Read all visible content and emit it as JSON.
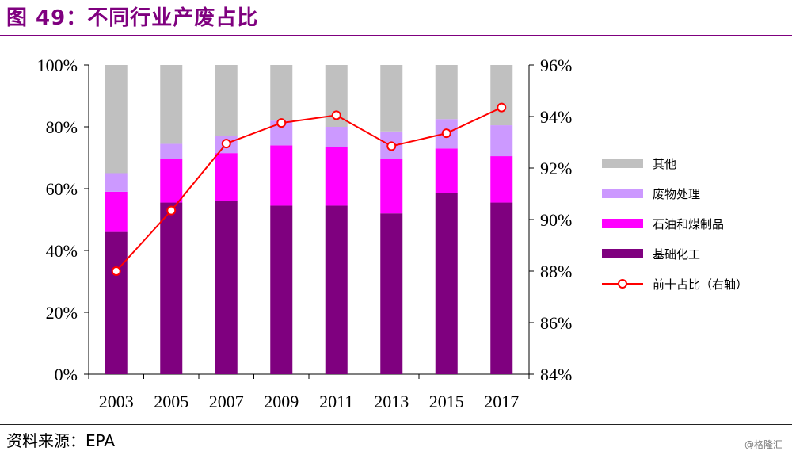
{
  "header": {
    "title": "图 49：不同行业产废占比"
  },
  "source": {
    "label": "资料来源：",
    "value": "EPA"
  },
  "watermark": "@格隆汇",
  "chart_data": {
    "type": "bar",
    "stacked": true,
    "categories": [
      "2003",
      "2005",
      "2007",
      "2009",
      "2011",
      "2013",
      "2015",
      "2017"
    ],
    "series": [
      {
        "name": "基础化工",
        "color": "#7f007f",
        "values": [
          46,
          55.5,
          56,
          54.5,
          54.5,
          52,
          58.5,
          55.5
        ]
      },
      {
        "name": "石油和煤制品",
        "color": "#ff00ff",
        "values": [
          13,
          14,
          15.5,
          19.5,
          19,
          17.5,
          14.5,
          15
        ]
      },
      {
        "name": "废物处理",
        "color": "#cc99ff",
        "values": [
          6,
          5,
          5.5,
          8,
          6.5,
          9,
          9.5,
          10
        ]
      },
      {
        "name": "其他",
        "color": "#c0c0c0",
        "values": [
          35,
          25.5,
          23,
          18,
          20,
          21.5,
          17.5,
          19.5
        ]
      }
    ],
    "line_series": {
      "name": "前十占比（右轴）",
      "color": "#ff0000",
      "axis": "right",
      "values": [
        88.0,
        90.35,
        92.95,
        93.75,
        94.05,
        92.85,
        93.35,
        94.35
      ]
    },
    "left_axis": {
      "ylim": [
        0,
        100
      ],
      "ticks": [
        "0%",
        "20%",
        "40%",
        "60%",
        "80%",
        "100%"
      ]
    },
    "right_axis": {
      "ylim": [
        84,
        96
      ],
      "ticks": [
        "84%",
        "86%",
        "88%",
        "90%",
        "92%",
        "94%",
        "96%"
      ]
    },
    "legend_position": "right",
    "grid": false
  }
}
